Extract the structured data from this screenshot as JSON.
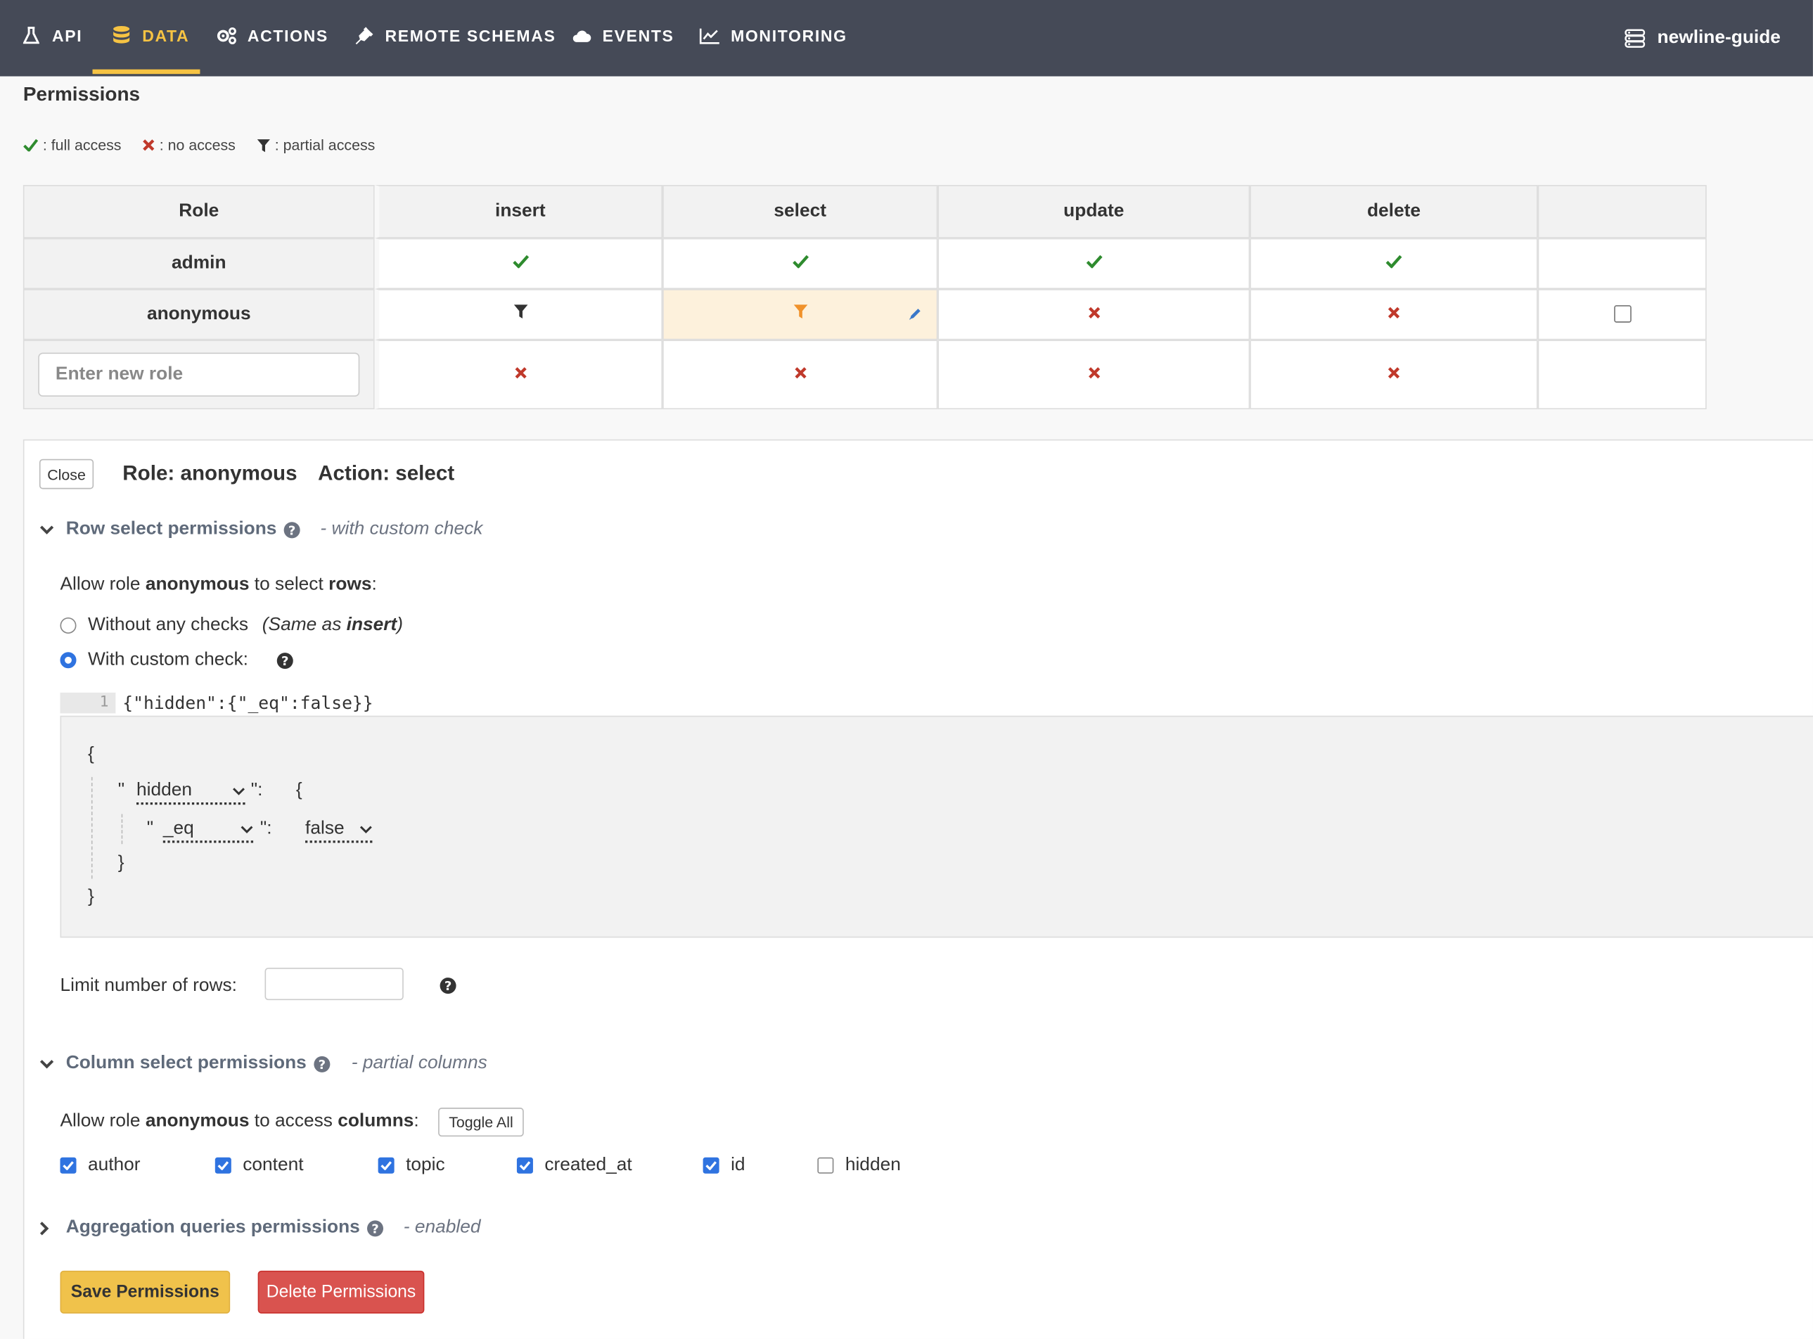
{
  "nav": {
    "items": [
      {
        "label": "API",
        "icon": "flask-icon"
      },
      {
        "label": "DATA",
        "icon": "database-icon",
        "active": true
      },
      {
        "label": "ACTIONS",
        "icon": "cogs-icon"
      },
      {
        "label": "REMOTE SCHEMAS",
        "icon": "plug-icon"
      },
      {
        "label": "EVENTS",
        "icon": "cloud-icon"
      },
      {
        "label": "MONITORING",
        "icon": "line-chart-icon"
      }
    ],
    "project": "newline-guide",
    "accent": "#f6c343"
  },
  "page": {
    "title": "Permissions"
  },
  "legend": {
    "full": ": full access",
    "none": ": no access",
    "partial": ": partial access"
  },
  "table": {
    "headers": {
      "role": "Role",
      "insert": "insert",
      "select": "select",
      "update": "update",
      "delete": "delete"
    },
    "rows": [
      {
        "role": "admin",
        "insert": "full",
        "select": "full",
        "update": "full",
        "delete": "full"
      },
      {
        "role": "anonymous",
        "insert": "partial",
        "select": "partial",
        "update": "none",
        "delete": "none"
      }
    ],
    "new_role_placeholder": "Enter new role",
    "new_role_perms": [
      "none",
      "none",
      "none",
      "none"
    ]
  },
  "panel": {
    "close_label": "Close",
    "role_heading": "Role: anonymous",
    "action_heading": "Action: select",
    "row_section": {
      "title": "Row select permissions",
      "note": "- with custom check"
    },
    "allow_rows": {
      "pre": "Allow role ",
      "role": "anonymous",
      "mid": " to select ",
      "target": "rows",
      "post": ":"
    },
    "radio_without": "Without any checks",
    "radio_without_note_pre": "(Same as ",
    "radio_without_note_bold": "insert",
    "radio_without_note_post": ")",
    "radio_with": "With custom check:",
    "code_line_number": "1",
    "code_text": "{\"hidden\":{\"_eq\":false}}",
    "builder": {
      "open_brace": "{",
      "close_brace": "}",
      "quote": "\"",
      "colon": "\":",
      "key_column": "hidden",
      "key_operator": "_eq",
      "value": "false"
    },
    "limit_label": "Limit number of rows:",
    "limit_value": "",
    "column_section": {
      "title": "Column select permissions",
      "note": "- partial columns"
    },
    "allow_columns": {
      "pre": "Allow role ",
      "role": "anonymous",
      "mid": " to access ",
      "target": "columns",
      "post": ":"
    },
    "toggle_all": "Toggle All",
    "columns": [
      {
        "name": "author",
        "checked": true
      },
      {
        "name": "content",
        "checked": true
      },
      {
        "name": "topic",
        "checked": true
      },
      {
        "name": "created_at",
        "checked": true
      },
      {
        "name": "id",
        "checked": true
      },
      {
        "name": "hidden",
        "checked": false
      }
    ],
    "aggregation_section": {
      "title": "Aggregation queries permissions",
      "note": "- enabled"
    },
    "save_label": "Save Permissions",
    "delete_label": "Delete Permissions"
  }
}
